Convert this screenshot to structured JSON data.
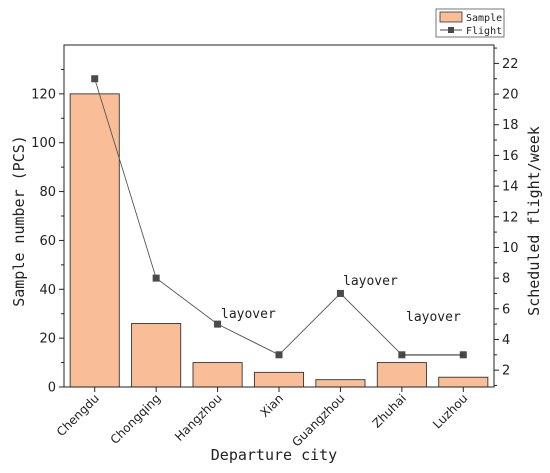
{
  "chart_data": {
    "type": "bar",
    "xlabel": "Departure city",
    "ylabel_left": "Sample number (PCS)",
    "ylabel_right": "Scheduled flight/week",
    "categories": [
      "Chengdu",
      "Chongqing",
      "Hangzhou",
      "Xian",
      "Guangzhou",
      "Zhuhai",
      "Luzhou"
    ],
    "ylim_left": [
      0,
      140
    ],
    "yticks_left": [
      0,
      20,
      40,
      60,
      80,
      100,
      120
    ],
    "ylim_right": [
      0.9,
      23.2
    ],
    "yticks_right": [
      2,
      4,
      6,
      8,
      10,
      12,
      14,
      16,
      18,
      20,
      22
    ],
    "series": [
      {
        "name": "Sample",
        "type": "bar",
        "axis": "left",
        "color": "#F9BE98",
        "values": [
          120,
          26,
          10,
          6,
          3,
          10,
          4
        ]
      },
      {
        "name": "Flight",
        "type": "line",
        "axis": "right",
        "color": "#4a4a4a",
        "marker": "square",
        "values": [
          21,
          8,
          5,
          3,
          7,
          3,
          3
        ]
      }
    ],
    "annotations": [
      "layover",
      "layover",
      "layover"
    ],
    "legend_position": "top-right",
    "grid": false
  }
}
